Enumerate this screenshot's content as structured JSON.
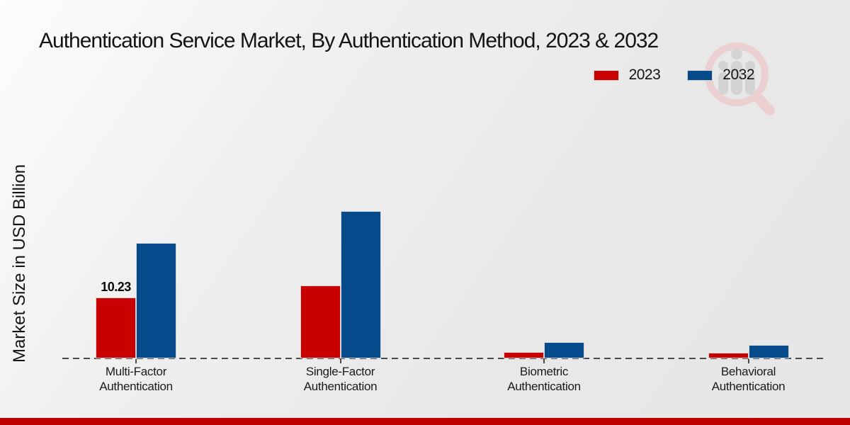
{
  "title": "Authentication Service Market, By Authentication Method, 2023 & 2032",
  "ylabel": "Market Size in USD Billion",
  "legend": {
    "items": [
      {
        "label": "2023",
        "color": "#c80000"
      },
      {
        "label": "2032",
        "color": "#054a8b"
      }
    ]
  },
  "colors": {
    "accent_red": "#c80000",
    "accent_blue": "#054a8b",
    "footer_red": "#c00000",
    "axis_gray": "#4a4a4a"
  },
  "watermark_icon": "magnifier-people-logo-watermark",
  "chart_data": {
    "type": "bar",
    "title": "Authentication Service Market, By Authentication Method, 2023 & 2032",
    "xlabel": "",
    "ylabel": "Market Size in USD Billion",
    "categories": [
      [
        "Multi-Factor",
        "Authentication"
      ],
      [
        "Single-Factor",
        "Authentication"
      ],
      [
        "Biometric",
        "Authentication"
      ],
      [
        "Behavioral",
        "Authentication"
      ]
    ],
    "series": [
      {
        "name": "2023",
        "color": "#c80000",
        "values": [
          10.23,
          12.2,
          1.1,
          1.0
        ],
        "value_labels": [
          "10.23",
          "",
          "",
          ""
        ]
      },
      {
        "name": "2032",
        "color": "#054a8b",
        "values": [
          19.4,
          24.7,
          2.7,
          2.3
        ],
        "value_labels": [
          "",
          "",
          "",
          ""
        ]
      }
    ],
    "ylim": [
      0,
      26
    ],
    "grid": false,
    "y_axis_ticks_visible": false,
    "baseline_style": "dashed",
    "legend_position": "top-right"
  }
}
